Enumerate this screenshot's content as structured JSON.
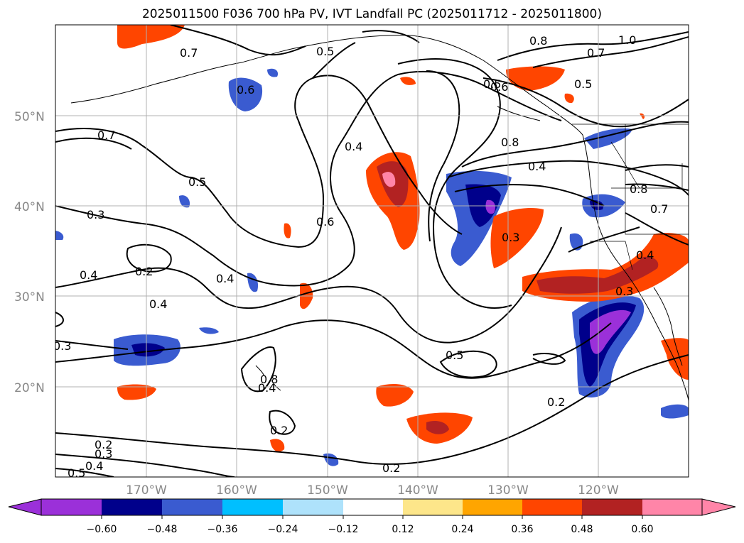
{
  "title": "2025011500 F036 700 hPa PV, IVT Landfall PC (2025011712 - 2025011800)",
  "map": {
    "lat_labels": [
      "50°N",
      "40°N",
      "30°N",
      "20°N"
    ],
    "lon_labels": [
      "170°W",
      "160°W",
      "150°W",
      "140°W",
      "130°W",
      "120°W"
    ],
    "contour_labels": [
      "0.7",
      "0.5",
      "0.8",
      "0.7",
      "1.0",
      "0.5",
      "0.6",
      "0.4",
      "0.5",
      "0.7",
      "0.5",
      "0.3",
      "0.6",
      "0.4",
      "0.2",
      "0.4",
      "0.4",
      "0.3",
      "0.8",
      "0.4",
      "0.3",
      "0.4",
      "0.3",
      "0.5",
      "0.2",
      "0.2",
      "0.3",
      "0.4",
      "0.5",
      "0.2",
      "0.8",
      "0.7",
      "0.8",
      "0.6",
      "0.2",
      "0.4"
    ],
    "colors": {
      "contour": "#000000",
      "grid": "#b0b0b0",
      "coast": "#000000"
    }
  },
  "colorbar": {
    "ticks": [
      "−0.60",
      "−0.48",
      "−0.36",
      "−0.24",
      "−0.12",
      "0.12",
      "0.24",
      "0.36",
      "0.48",
      "0.60"
    ],
    "colors": [
      "#9b30d9",
      "#00008b",
      "#3a5bd0",
      "#00bfff",
      "#aee2fb",
      "#ffffff",
      "#fde68a",
      "#ffa500",
      "#ff4500",
      "#b22222",
      "#ff85a8"
    ]
  }
}
